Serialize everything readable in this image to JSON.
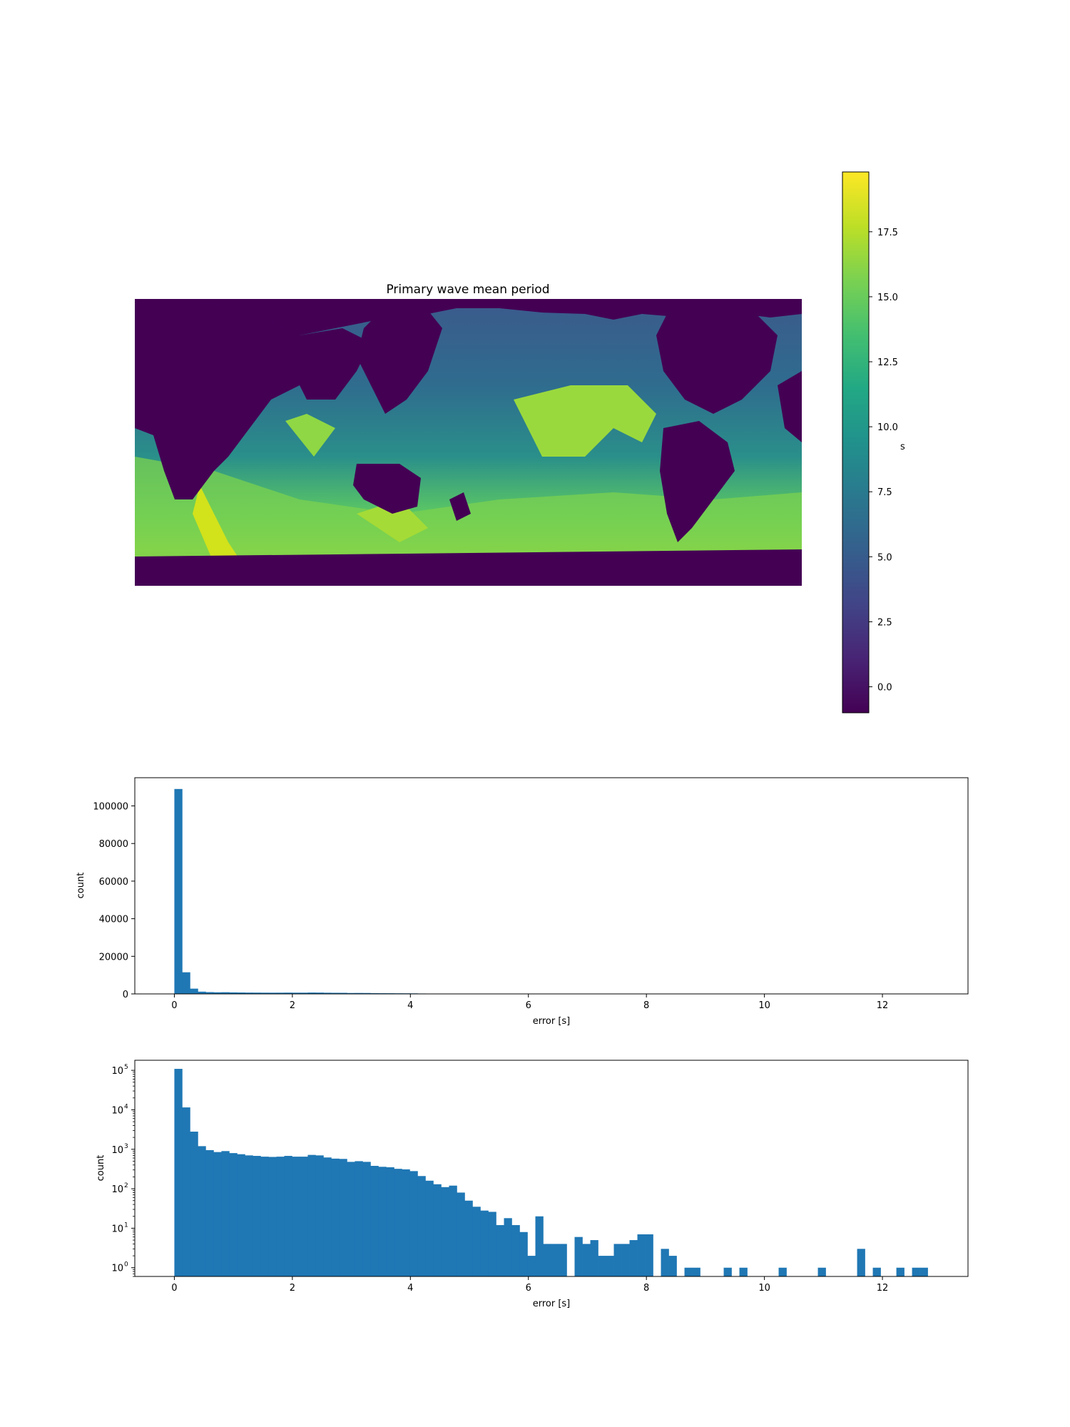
{
  "chart_data": [
    {
      "type": "heatmap",
      "title": "Primary wave mean period",
      "colorbar": {
        "label": "s",
        "range": [
          -1.0,
          19.8
        ],
        "ticks": [
          "0.0",
          "2.5",
          "5.0",
          "7.5",
          "10.0",
          "12.5",
          "15.0",
          "17.5"
        ],
        "colormap": "viridis"
      },
      "axes_visible": false
    },
    {
      "type": "bar",
      "xlabel": "error [s]",
      "ylabel": "count",
      "xlim": [
        -0.67,
        13.45
      ],
      "ylim": [
        0,
        115000
      ],
      "xticks": [
        "0",
        "2",
        "4",
        "6",
        "8",
        "10",
        "12"
      ],
      "yticks": [
        "0",
        "20000",
        "40000",
        "60000",
        "80000",
        "100000"
      ],
      "bin_width": 0.133,
      "bin_start": 0,
      "values": [
        109000,
        11500,
        2800,
        1200,
        950,
        850,
        900,
        800,
        750,
        700,
        680,
        650,
        640,
        650,
        680,
        650,
        650,
        720,
        700,
        620,
        580,
        570,
        480,
        500,
        480,
        380,
        360,
        350,
        320,
        310,
        280,
        210,
        160,
        130,
        110,
        120,
        80,
        50,
        35,
        28,
        26,
        12,
        18,
        12,
        8,
        2,
        20,
        4,
        4,
        4,
        0,
        6,
        4,
        5,
        2,
        2,
        4,
        4,
        5,
        7,
        7,
        0,
        3,
        2,
        0,
        1,
        1,
        0,
        0,
        0,
        1,
        0,
        1,
        0,
        0,
        0,
        0,
        1,
        0,
        0,
        0,
        0,
        1,
        0,
        0,
        0,
        0,
        3,
        0,
        1,
        0,
        0,
        1,
        0,
        1,
        1,
        0,
        0,
        0,
        0
      ],
      "color": "#1f77b4"
    },
    {
      "type": "bar",
      "log_y": true,
      "xlabel": "error [s]",
      "ylabel": "count",
      "xlim": [
        -0.67,
        13.45
      ],
      "ylim": [
        0.6,
        180000
      ],
      "xticks": [
        "0",
        "2",
        "4",
        "6",
        "8",
        "10",
        "12"
      ],
      "yticks_exponents": [
        "0",
        "1",
        "2",
        "3",
        "4",
        "5"
      ],
      "ytick_base": "10",
      "bin_width": 0.133,
      "bin_start": 0,
      "values_ref": "same as histogram above",
      "color": "#1f77b4"
    }
  ]
}
